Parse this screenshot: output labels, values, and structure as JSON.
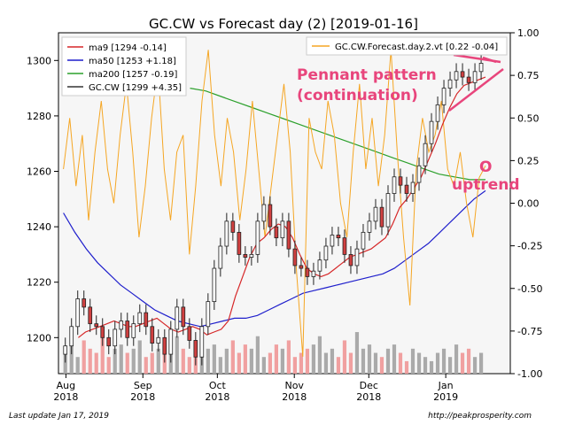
{
  "chart_data": {
    "type": "line",
    "title": "GC.CW vs Forecast day (2)  [2019-01-16]",
    "xlabel": "",
    "ylabel": "",
    "x_ticks": [
      {
        "date": "2018-08-01",
        "label1": "Aug",
        "label2": "2018"
      },
      {
        "date": "2018-09-01",
        "label1": "Sep",
        "label2": "2018"
      },
      {
        "date": "2018-10-01",
        "label1": "Oct",
        "label2": "2018"
      },
      {
        "date": "2018-11-01",
        "label1": "Nov",
        "label2": "2018"
      },
      {
        "date": "2018-12-01",
        "label1": "Dec",
        "label2": "2018"
      },
      {
        "date": "2019-01-01",
        "label1": "Jan",
        "label2": "2019"
      }
    ],
    "xlim": [
      "2018-07-29",
      "2019-01-27"
    ],
    "left_axis": {
      "ylim": [
        1187,
        1310
      ],
      "ticks": [
        1200,
        1220,
        1240,
        1260,
        1280,
        1300
      ]
    },
    "right_axis": {
      "ylim": [
        -1.0,
        1.0
      ],
      "ticks": [
        "1.00",
        "0.75",
        "0.50",
        "0.25",
        "0.00",
        "-0.25",
        "-0.50",
        "-0.75",
        "-1.00"
      ]
    },
    "legend_main": [
      {
        "label": "ma9 [1294 -0.14]",
        "color": "#d62728"
      },
      {
        "label": "ma50 [1253 +1.18]",
        "color": "#1f1fcc"
      },
      {
        "label": "ma200 [1257 -0.19]",
        "color": "#2ca02c"
      },
      {
        "label": "GC.CW [1299 +4.35]",
        "color": "#333333"
      }
    ],
    "legend_forecast": {
      "label": "GC.CW.Forecast.day.2.vt [0.22 -0.04]",
      "color": "#f5a623"
    },
    "annotations": {
      "pennant_line1": "Pennant pattern",
      "pennant_line2": "(continuation)",
      "uptrend_symbol": "O",
      "uptrend": "uptrend"
    },
    "footer_left": "Last update Jan 17, 2019",
    "footer_right": "http://peakprosperity.com",
    "series": [
      {
        "name": "GC.CW",
        "type": "candlestick",
        "color_up": "#ffffff",
        "color_down": "#d04040",
        "values": [
          1197,
          1204,
          1214,
          1211,
          1205,
          1204,
          1200,
          1197,
          1203,
          1206,
          1200,
          1205,
          1209,
          1204,
          1198,
          1200,
          1194,
          1203,
          1211,
          1204,
          1199,
          1193,
          1204,
          1213,
          1225,
          1233,
          1242,
          1238,
          1230,
          1229,
          1230,
          1242,
          1248,
          1240,
          1236,
          1242,
          1232,
          1226,
          1225,
          1222,
          1224,
          1228,
          1233,
          1237,
          1236,
          1230,
          1226,
          1232,
          1238,
          1242,
          1247,
          1240,
          1252,
          1258,
          1255,
          1252,
          1256,
          1262,
          1270,
          1278,
          1284,
          1290,
          1293,
          1296,
          1294,
          1292,
          1296,
          1299
        ]
      },
      {
        "name": "ma9",
        "color": "#d62728",
        "values": [
          1200,
          1202,
          1203,
          1204,
          1205,
          1206,
          1205,
          1204,
          1204,
          1205,
          1206,
          1207,
          1205,
          1203,
          1202,
          1203,
          1204,
          1203,
          1201,
          1202,
          1203,
          1206,
          1215,
          1222,
          1229,
          1234,
          1236,
          1239,
          1241,
          1240,
          1236,
          1230,
          1225,
          1223,
          1222,
          1223,
          1225,
          1227,
          1229,
          1230,
          1231,
          1232,
          1234,
          1236,
          1241,
          1247,
          1250,
          1254,
          1258,
          1264,
          1270,
          1277,
          1283,
          1288,
          1291,
          1292,
          1293,
          1294
        ]
      },
      {
        "name": "ma50",
        "color": "#1f1fcc",
        "values": [
          1245,
          1238,
          1232,
          1227,
          1223,
          1219,
          1216,
          1213,
          1210,
          1208,
          1206,
          1205,
          1204,
          1205,
          1206,
          1207,
          1207,
          1208,
          1210,
          1212,
          1214,
          1216,
          1217,
          1218,
          1219,
          1220,
          1221,
          1222,
          1223,
          1225,
          1228,
          1231,
          1234,
          1238,
          1242,
          1246,
          1250,
          1253
        ]
      },
      {
        "name": "ma200",
        "color": "#2ca02c",
        "values": [
          1290,
          1289,
          1287,
          1285,
          1283,
          1281,
          1279,
          1277,
          1275,
          1273,
          1271,
          1269,
          1267,
          1265,
          1263,
          1261,
          1259,
          1258,
          1257,
          1257
        ]
      },
      {
        "name": "GC.CW.Forecast.day.2.vt",
        "axis": "right",
        "color": "#f5a623",
        "values": [
          0.2,
          0.5,
          0.1,
          0.4,
          -0.1,
          0.3,
          0.6,
          0.2,
          0.0,
          0.4,
          0.7,
          0.3,
          -0.2,
          0.1,
          0.5,
          0.8,
          0.2,
          -0.1,
          0.3,
          0.4,
          -0.3,
          0.1,
          0.6,
          0.9,
          0.4,
          0.1,
          0.5,
          0.3,
          -0.1,
          0.2,
          0.6,
          0.2,
          -0.2,
          0.1,
          0.4,
          0.7,
          0.3,
          -0.4,
          -0.9,
          0.5,
          0.3,
          0.2,
          0.6,
          0.4,
          0.0,
          -0.2,
          0.3,
          0.7,
          0.2,
          0.5,
          0.1,
          0.4,
          0.9,
          0.3,
          -0.2,
          -0.6,
          0.2,
          0.5,
          0.3,
          0.4,
          0.6,
          0.2,
          0.1,
          0.3,
          0.0,
          -0.2,
          0.15,
          0.22
        ]
      },
      {
        "name": "Volume",
        "type": "bar",
        "color_up": "#aaaaaa",
        "color_down": "#f0a0a0",
        "values": [
          0.5,
          0.7,
          0.4,
          0.8,
          0.6,
          0.5,
          0.9,
          0.4,
          0.6,
          0.7,
          0.5,
          0.6,
          0.8,
          0.4,
          0.5,
          0.6,
          0.7,
          0.5,
          0.9,
          0.6,
          0.4,
          0.8,
          0.5,
          0.6,
          0.7,
          0.4,
          0.6,
          0.8,
          0.5,
          0.7,
          0.6,
          0.9,
          0.4,
          0.5,
          0.7,
          0.6,
          0.8,
          0.4,
          0.5,
          0.6,
          0.7,
          0.9,
          0.5,
          0.6,
          0.4,
          0.8,
          0.5,
          1.0,
          0.6,
          0.7,
          0.5,
          0.4,
          0.6,
          0.7,
          0.5,
          0.3,
          0.6,
          0.5,
          0.4,
          0.3,
          0.5,
          0.6,
          0.4,
          0.7,
          0.5,
          0.6,
          0.4,
          0.5
        ]
      }
    ]
  }
}
